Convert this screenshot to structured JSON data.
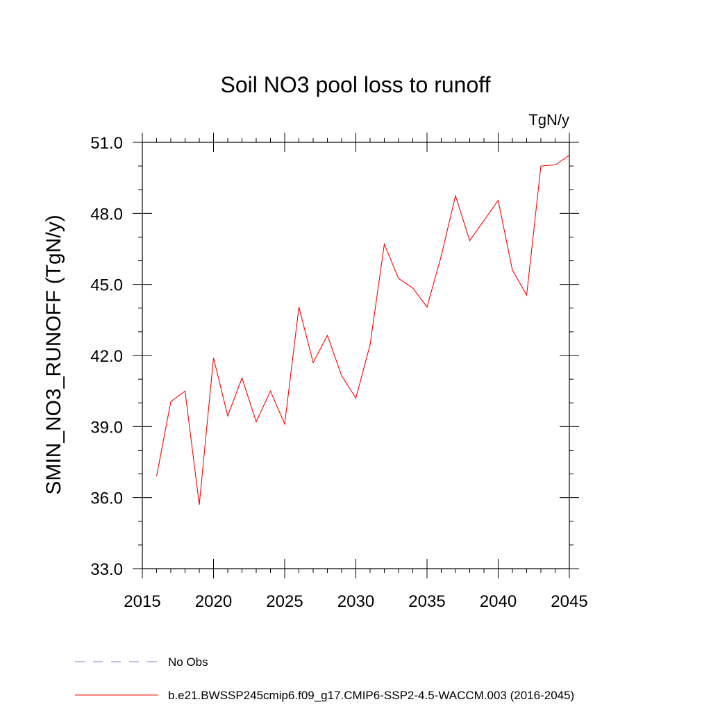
{
  "chart_data": {
    "type": "line",
    "title": "Soil NO3 pool loss to runoff",
    "units": "TgN/y",
    "ylabel": "SMIN_NO3_RUNOFF  (TgN/y)",
    "xlabel": "",
    "xlim": [
      2015,
      2045
    ],
    "ylim": [
      33.0,
      51.0
    ],
    "x_ticks": [
      "2015",
      "2020",
      "2025",
      "2030",
      "2035",
      "2040",
      "2045"
    ],
    "y_ticks": [
      "33.0",
      "36.0",
      "39.0",
      "42.0",
      "45.0",
      "48.0",
      "51.0"
    ],
    "grid": false,
    "legend_position": "bottom",
    "series": [
      {
        "name": "b.e21.BWSSP245cmip6.f09_g17.CMIP6-SSP2-4.5-WACCM.003 (2016-2045)",
        "color": "#ff0000",
        "style": "solid",
        "x": [
          2016,
          2017,
          2018,
          2019,
          2020,
          2021,
          2022,
          2023,
          2024,
          2025,
          2026,
          2027,
          2028,
          2029,
          2030,
          2031,
          2032,
          2033,
          2034,
          2035,
          2036,
          2037,
          2038,
          2039,
          2040,
          2041,
          2042,
          2043,
          2044,
          2045
        ],
        "values": [
          36.9,
          40.05,
          40.5,
          35.7,
          41.9,
          39.45,
          41.05,
          39.2,
          40.5,
          39.1,
          44.05,
          41.7,
          42.85,
          41.15,
          40.2,
          42.45,
          46.7,
          45.25,
          44.85,
          44.05,
          46.2,
          48.75,
          46.85,
          47.7,
          48.55,
          45.6,
          44.55,
          50.0,
          50.05,
          50.45
        ]
      },
      {
        "name": "No Obs",
        "color": "#8080c8",
        "style": "dashed",
        "x": [],
        "values": []
      }
    ]
  }
}
